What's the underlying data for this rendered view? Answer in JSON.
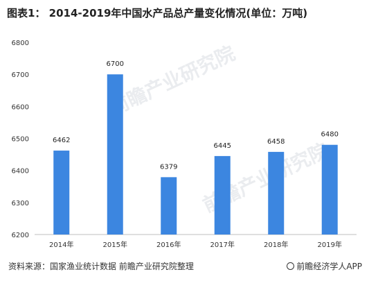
{
  "title": "图表1：  2014-2019年中国水产品总产量变化情况(单位：万吨)",
  "source": "资料来源：国家渔业统计数据 前瞻产业研究院整理",
  "brand": "前瞻经济学人APP",
  "watermark": "前瞻产业研究院",
  "colors": {
    "bar": "#3C86E0",
    "axis": "#BFBFBF"
  },
  "chart_data": {
    "type": "bar",
    "categories": [
      "2014年",
      "2015年",
      "2016年",
      "2017年",
      "2018年",
      "2019年"
    ],
    "values": [
      6462,
      6700,
      6379,
      6445,
      6458,
      6480
    ],
    "ylim": [
      6200,
      6800
    ],
    "yticks": [
      6200,
      6300,
      6400,
      6500,
      6600,
      6700,
      6800
    ],
    "grid": false,
    "legend": "none"
  }
}
